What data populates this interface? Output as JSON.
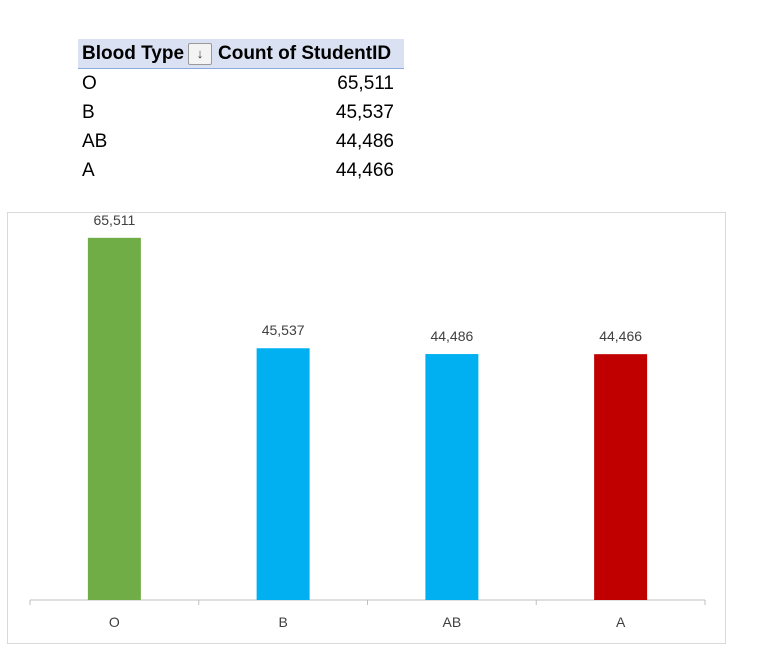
{
  "pivot_table": {
    "header": {
      "col1": "Blood Type",
      "col2": "Count of StudentID",
      "sort_icon": "↓"
    },
    "rows": [
      {
        "label": "O",
        "value": "65,511"
      },
      {
        "label": "B",
        "value": "45,537"
      },
      {
        "label": "AB",
        "value": "44,486"
      },
      {
        "label": "A",
        "value": "44,466"
      }
    ]
  },
  "chart_data": {
    "type": "bar",
    "categories": [
      "O",
      "B",
      "AB",
      "A"
    ],
    "values": [
      65511,
      45537,
      44486,
      44466
    ],
    "value_labels": [
      "65,511",
      "45,537",
      "44,486",
      "44,466"
    ],
    "colors": [
      "#70ad47",
      "#00b0f0",
      "#00b0f0",
      "#c00000"
    ],
    "title": "",
    "xlabel": "",
    "ylabel": "",
    "ylim": [
      0,
      70000
    ],
    "grid": false,
    "legend": "none"
  }
}
